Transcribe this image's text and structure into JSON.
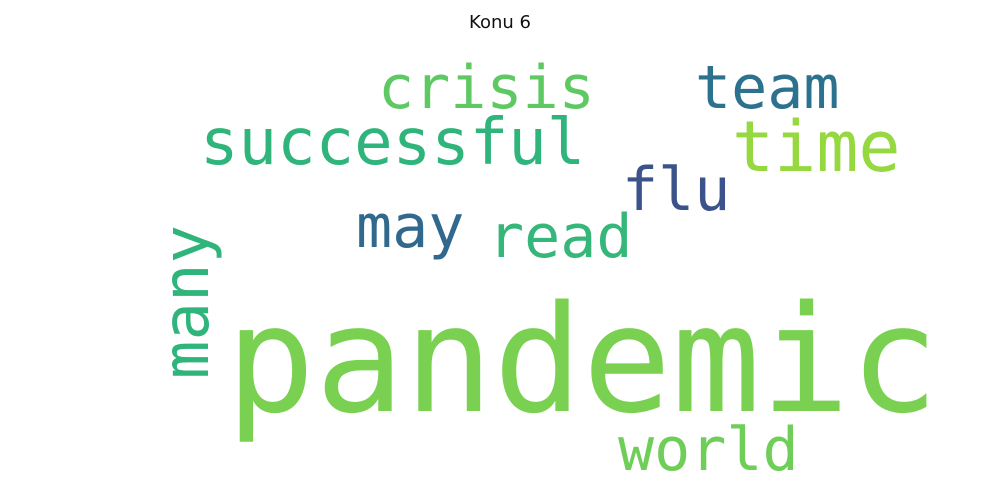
{
  "title": "Konu 6",
  "words": {
    "pandemic": {
      "text": "pandemic",
      "color": "#7ad151"
    },
    "successful": {
      "text": "successful",
      "color": "#2fb47c"
    },
    "crisis": {
      "text": "crisis",
      "color": "#5ec962"
    },
    "team": {
      "text": "team",
      "color": "#2c728e"
    },
    "time": {
      "text": "time",
      "color": "#95d840"
    },
    "flu": {
      "text": "flu",
      "color": "#3b528b"
    },
    "may": {
      "text": "may",
      "color": "#31688e"
    },
    "read": {
      "text": "read",
      "color": "#35b779"
    },
    "many": {
      "text": "many",
      "color": "#2fb47c"
    },
    "world": {
      "text": "world",
      "color": "#6ece58"
    }
  }
}
